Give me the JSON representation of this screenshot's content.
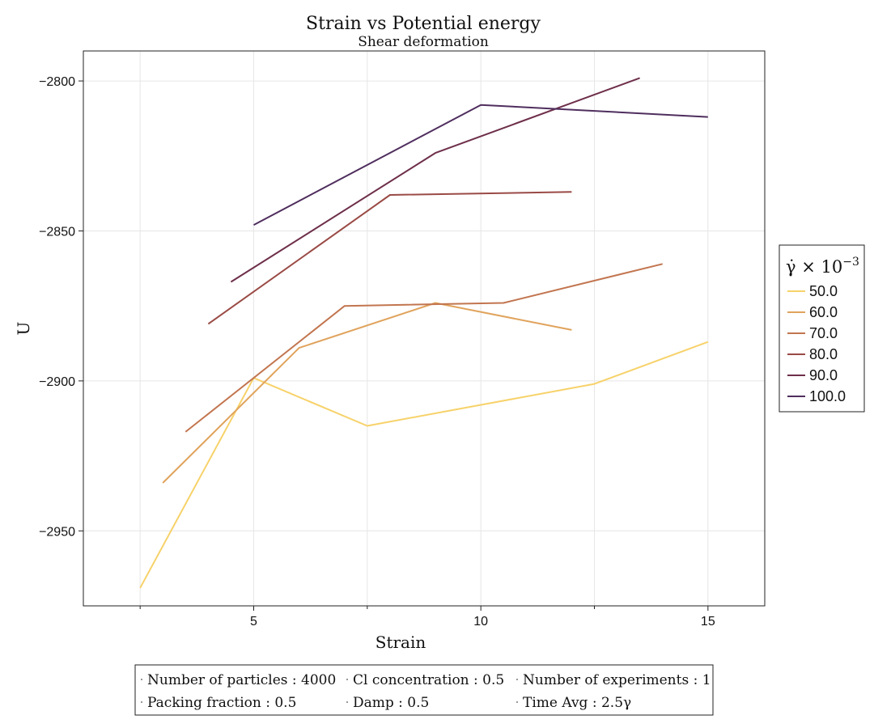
{
  "chart_data": {
    "type": "line",
    "title": "Strain vs Potential energy",
    "subtitle": "Shear deformation",
    "xlabel": "Strain",
    "ylabel": "U",
    "xlim": [
      1.25,
      16.25
    ],
    "ylim": [
      -2975,
      -2790
    ],
    "x_ticks": [
      5,
      10,
      15
    ],
    "x_minor_ticks": [
      2.5,
      7.5,
      12.5
    ],
    "y_ticks": [
      -2950,
      -2900,
      -2850,
      -2800
    ],
    "grid": true,
    "legend": {
      "title_base": "γ̇ × 10",
      "title_exp": "−3",
      "placement": "right"
    },
    "series": [
      {
        "name": "50.0",
        "color": "#f7d26a",
        "x": [
          2.5,
          5.0,
          7.5,
          12.5,
          15.0
        ],
        "y": [
          -2969,
          -2899,
          -2915,
          -2901,
          -2887
        ]
      },
      {
        "name": "60.0",
        "color": "#e0a35c",
        "x": [
          3.0,
          6.0,
          9.0,
          12.0
        ],
        "y": [
          -2934,
          -2889,
          -2874,
          -2883
        ]
      },
      {
        "name": "70.0",
        "color": "#c2754f",
        "x": [
          3.5,
          7.0,
          10.5,
          14.0
        ],
        "y": [
          -2917,
          -2875,
          -2874,
          -2861
        ]
      },
      {
        "name": "80.0",
        "color": "#9a4a45",
        "x": [
          4.0,
          8.0,
          12.0
        ],
        "y": [
          -2881,
          -2838,
          -2837
        ]
      },
      {
        "name": "90.0",
        "color": "#6e2f4a",
        "x": [
          4.5,
          9.0,
          13.5
        ],
        "y": [
          -2867,
          -2824,
          -2799
        ]
      },
      {
        "name": "100.0",
        "color": "#4f2e5e",
        "x": [
          5.0,
          10.0,
          15.0
        ],
        "y": [
          -2848,
          -2808,
          -2812
        ]
      }
    ]
  },
  "info_box": {
    "rows": [
      [
        "Number of particles : 4000",
        "Cl concentration : 0.5",
        "Number of experiments : 1"
      ],
      [
        "Packing fraction : 0.5",
        "Damp : 0.5",
        "Time Avg : 2.5γ"
      ]
    ]
  }
}
